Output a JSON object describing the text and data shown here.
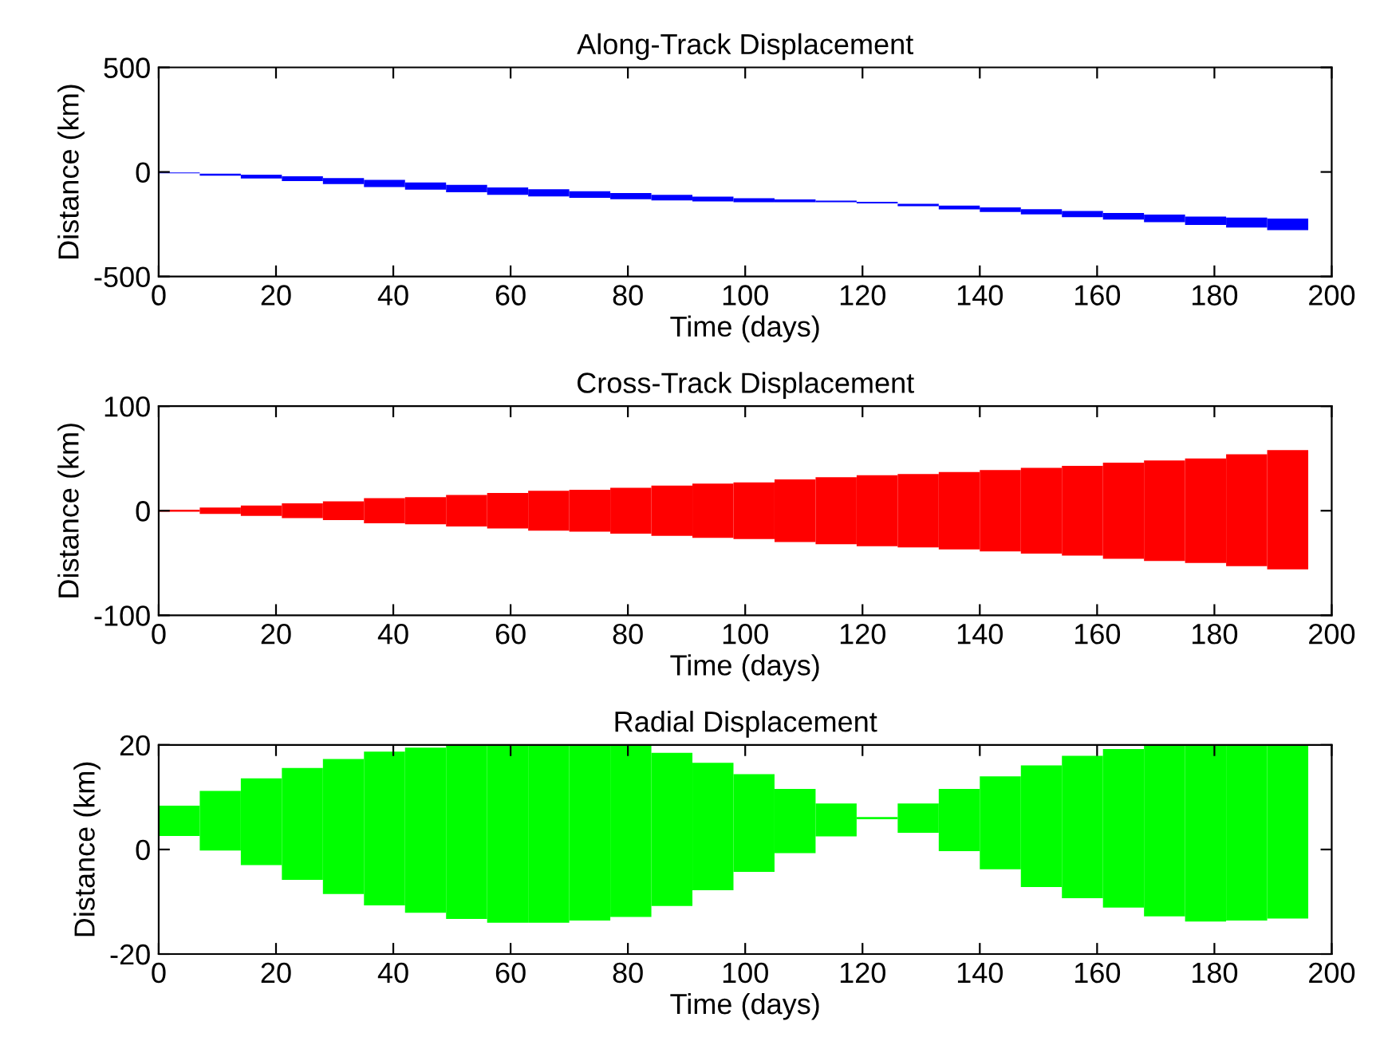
{
  "chart_data": [
    {
      "type": "bar",
      "title": "Along-Track Displacement",
      "xlabel": "Time (days)",
      "ylabel": "Distance (km)",
      "x": [
        3.5,
        10.5,
        17.5,
        24.5,
        31.5,
        38.5,
        45.5,
        52.5,
        59.5,
        66.5,
        73.5,
        80.5,
        87.5,
        94.5,
        101.5,
        108.5,
        115.5,
        122.5,
        129.5,
        136.5,
        143.5,
        150.5,
        157.5,
        164.5,
        171.5,
        178.5,
        185.5,
        192.5
      ],
      "series": [
        {
          "color": "#0000ff",
          "base": [
            -6,
            -18,
            -31,
            -44,
            -58,
            -72,
            -85,
            -97,
            -109,
            -117,
            -124,
            -130,
            -136,
            -141,
            -145,
            -145,
            -145,
            -150,
            -164,
            -179,
            -191,
            -203,
            -216,
            -228,
            -240,
            -253,
            -266,
            -278
          ],
          "values": [
            3,
            10,
            18,
            23,
            29,
            34,
            35,
            35,
            35,
            34,
            32,
            29,
            27,
            23,
            19,
            14,
            8,
            7,
            12,
            18,
            22,
            25,
            29,
            32,
            36,
            40,
            48,
            55
          ]
        }
      ],
      "xlim": [
        0,
        200
      ],
      "ylim": [
        -500,
        500
      ],
      "xticks": [
        0,
        20,
        40,
        60,
        80,
        100,
        120,
        140,
        160,
        180,
        200
      ],
      "yticks": [
        -500,
        0,
        500
      ]
    },
    {
      "type": "bar",
      "title": "Cross-Track Displacement",
      "xlabel": "Time (days)",
      "ylabel": "Distance (km)",
      "x": [
        3.5,
        10.5,
        17.5,
        24.5,
        31.5,
        38.5,
        45.5,
        52.5,
        59.5,
        66.5,
        73.5,
        80.5,
        87.5,
        94.5,
        101.5,
        108.5,
        115.5,
        122.5,
        129.5,
        136.5,
        143.5,
        150.5,
        157.5,
        164.5,
        171.5,
        178.5,
        185.5,
        192.5
      ],
      "series": [
        {
          "color": "#ff0000",
          "base": [
            -1,
            -3,
            -5,
            -7,
            -9,
            -12,
            -13,
            -15,
            -17,
            -19,
            -20,
            -22,
            -24,
            -26,
            -27,
            -30,
            -32,
            -34,
            -35,
            -37,
            -39,
            -41,
            -43,
            -46,
            -48,
            -50,
            -53,
            -56
          ],
          "values": [
            2,
            6,
            10,
            14,
            18,
            24,
            26,
            30,
            34,
            38,
            40,
            44,
            48,
            52,
            54,
            60,
            64,
            68,
            70,
            74,
            78,
            82,
            86,
            92,
            96,
            100,
            107,
            114
          ]
        }
      ],
      "xlim": [
        0,
        200
      ],
      "ylim": [
        -100,
        100
      ],
      "xticks": [
        0,
        20,
        40,
        60,
        80,
        100,
        120,
        140,
        160,
        180,
        200
      ],
      "yticks": [
        -100,
        0,
        100
      ]
    },
    {
      "type": "bar",
      "title": "Radial Displacement",
      "xlabel": "Time (days)",
      "ylabel": "Distance (km)",
      "x": [
        3.5,
        10.5,
        17.5,
        24.5,
        31.5,
        38.5,
        45.5,
        52.5,
        59.5,
        66.5,
        73.5,
        80.5,
        87.5,
        94.5,
        101.5,
        108.5,
        115.5,
        122.5,
        129.5,
        136.5,
        143.5,
        150.5,
        157.5,
        164.5,
        171.5,
        178.5,
        185.5,
        192.5
      ],
      "series": [
        {
          "color": "#00ff00",
          "base": [
            2.6,
            -0.2,
            -3,
            -5.8,
            -8.5,
            -10.7,
            -12.1,
            -13.3,
            -14,
            -14,
            -13.6,
            -12.9,
            -10.8,
            -7.8,
            -4.3,
            -0.7,
            2.5,
            5.8,
            3.2,
            -0.3,
            -3.8,
            -7.2,
            -9.3,
            -11.1,
            -12.8,
            -13.8,
            -13.6,
            -13.2
          ],
          "values": [
            5.8,
            11.4,
            16.6,
            21.4,
            25.8,
            29.4,
            31.6,
            33.3,
            34,
            34,
            33.6,
            32.8,
            29.3,
            24.4,
            18.7,
            12.3,
            6.3,
            0.4,
            5.6,
            11.9,
            17.8,
            23.3,
            27.2,
            30.3,
            32.8,
            33.8,
            33.6,
            33.2
          ]
        }
      ],
      "xlim": [
        0,
        200
      ],
      "ylim": [
        -20,
        20
      ],
      "xticks": [
        0,
        20,
        40,
        60,
        80,
        100,
        120,
        140,
        160,
        180,
        200
      ],
      "yticks": [
        -20,
        0,
        20
      ]
    }
  ]
}
